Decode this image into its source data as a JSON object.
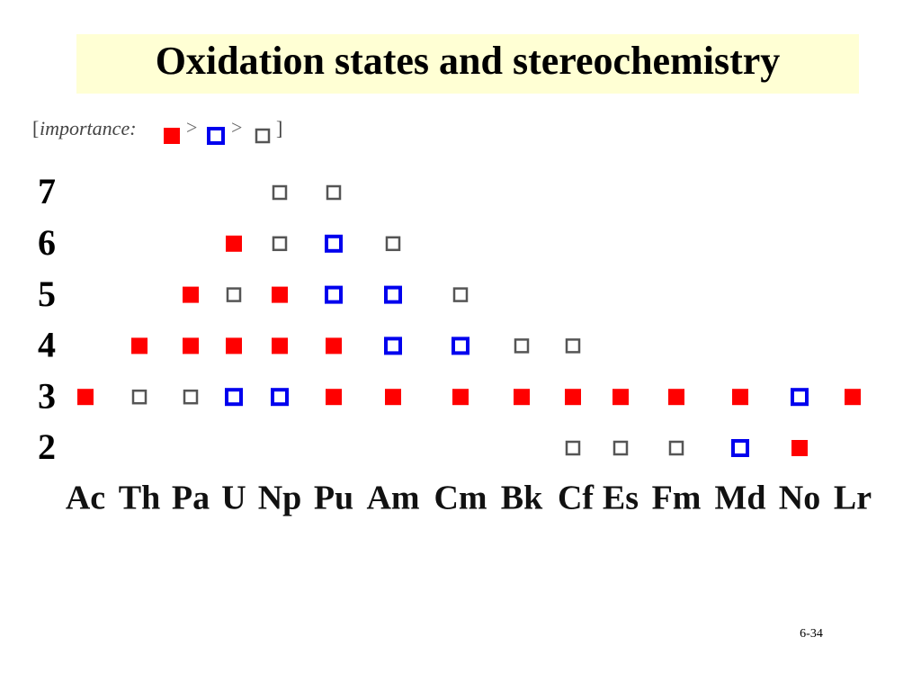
{
  "title": "Oxidation states and stereochemistry",
  "legend": {
    "open": "[",
    "label": "importance:",
    "separator": ">",
    "close": "]"
  },
  "levels": [
    {
      "color": "#ff0000",
      "filled": true
    },
    {
      "color": "#0000ee",
      "filled": false
    },
    {
      "color": "#555555",
      "filled": false
    }
  ],
  "yticks": [
    7,
    6,
    5,
    4,
    3,
    2
  ],
  "ylim": [
    2,
    7
  ],
  "elements": [
    {
      "symbol": "Ac",
      "states": [
        [
          3
        ],
        [],
        []
      ]
    },
    {
      "symbol": "Th",
      "states": [
        [
          4
        ],
        [],
        [
          3
        ]
      ]
    },
    {
      "symbol": "Pa",
      "states": [
        [
          5,
          4
        ],
        [],
        [
          3
        ]
      ]
    },
    {
      "symbol": "U",
      "states": [
        [
          6,
          4
        ],
        [
          3
        ],
        [
          5
        ]
      ]
    },
    {
      "symbol": "Np",
      "states": [
        [
          5,
          4
        ],
        [
          3
        ],
        [
          7,
          6
        ]
      ]
    },
    {
      "symbol": "Pu",
      "states": [
        [
          4,
          3
        ],
        [
          6,
          5
        ],
        [
          7
        ]
      ]
    },
    {
      "symbol": "Am",
      "states": [
        [
          3
        ],
        [
          5,
          4
        ],
        [
          6
        ]
      ]
    },
    {
      "symbol": "Cm",
      "states": [
        [
          3
        ],
        [
          4
        ],
        [
          5
        ]
      ]
    },
    {
      "symbol": "Bk",
      "states": [
        [
          3
        ],
        [],
        [
          4
        ]
      ]
    },
    {
      "symbol": "Cf",
      "states": [
        [
          3
        ],
        [],
        [
          4,
          2
        ]
      ]
    },
    {
      "symbol": "Es",
      "states": [
        [
          3
        ],
        [],
        [
          2
        ]
      ]
    },
    {
      "symbol": "Fm",
      "states": [
        [
          3
        ],
        [],
        [
          2
        ]
      ]
    },
    {
      "symbol": "Md",
      "states": [
        [
          3
        ],
        [
          2
        ],
        []
      ]
    },
    {
      "symbol": "No",
      "states": [
        [
          2
        ],
        [
          3
        ],
        []
      ]
    },
    {
      "symbol": "Lr",
      "states": [
        [
          3
        ],
        [],
        []
      ]
    }
  ],
  "page_number": "6-34"
}
